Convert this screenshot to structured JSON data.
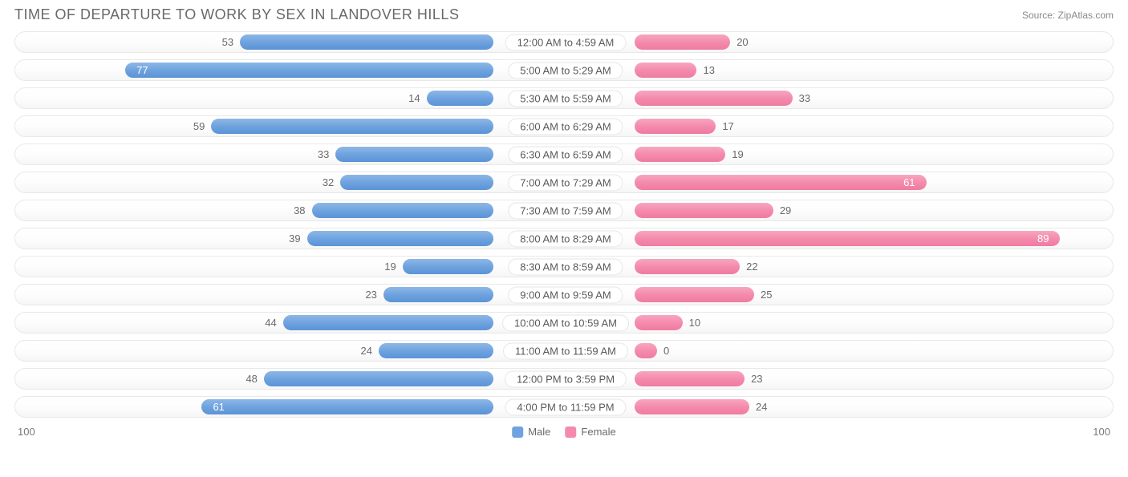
{
  "title": "TIME OF DEPARTURE TO WORK BY SEX IN LANDOVER HILLS",
  "source": "Source: ZipAtlas.com",
  "axis_max": 100,
  "axis_left_label": "100",
  "axis_right_label": "100",
  "colors": {
    "male_fill": "linear-gradient(to bottom, #8db7e6 0%, #6fa3df 50%, #5a93d6 100%)",
    "male_solid": "#6fa3df",
    "female_fill": "linear-gradient(to bottom, #f7a6c0 0%, #f48bad 50%, #ef7ba1 100%)",
    "female_solid": "#f48bad",
    "track_border": "#e8e8e8",
    "text": "#6a6a6a"
  },
  "legend": [
    {
      "label": "Male",
      "color": "#6fa3df"
    },
    {
      "label": "Female",
      "color": "#f48bad"
    }
  ],
  "rows": [
    {
      "label": "12:00 AM to 4:59 AM",
      "male": 53,
      "female": 20,
      "male_inside": false,
      "female_inside": false
    },
    {
      "label": "5:00 AM to 5:29 AM",
      "male": 77,
      "female": 13,
      "male_inside": true,
      "female_inside": false
    },
    {
      "label": "5:30 AM to 5:59 AM",
      "male": 14,
      "female": 33,
      "male_inside": false,
      "female_inside": false
    },
    {
      "label": "6:00 AM to 6:29 AM",
      "male": 59,
      "female": 17,
      "male_inside": false,
      "female_inside": false
    },
    {
      "label": "6:30 AM to 6:59 AM",
      "male": 33,
      "female": 19,
      "male_inside": false,
      "female_inside": false
    },
    {
      "label": "7:00 AM to 7:29 AM",
      "male": 32,
      "female": 61,
      "male_inside": false,
      "female_inside": true
    },
    {
      "label": "7:30 AM to 7:59 AM",
      "male": 38,
      "female": 29,
      "male_inside": false,
      "female_inside": false
    },
    {
      "label": "8:00 AM to 8:29 AM",
      "male": 39,
      "female": 89,
      "male_inside": false,
      "female_inside": true
    },
    {
      "label": "8:30 AM to 8:59 AM",
      "male": 19,
      "female": 22,
      "male_inside": false,
      "female_inside": false
    },
    {
      "label": "9:00 AM to 9:59 AM",
      "male": 23,
      "female": 25,
      "male_inside": false,
      "female_inside": false
    },
    {
      "label": "10:00 AM to 10:59 AM",
      "male": 44,
      "female": 10,
      "male_inside": false,
      "female_inside": false
    },
    {
      "label": "11:00 AM to 11:59 AM",
      "male": 24,
      "female": 0,
      "male_inside": false,
      "female_inside": false
    },
    {
      "label": "12:00 PM to 3:59 PM",
      "male": 48,
      "female": 23,
      "male_inside": false,
      "female_inside": false
    },
    {
      "label": "4:00 PM to 11:59 PM",
      "male": 61,
      "female": 24,
      "male_inside": true,
      "female_inside": false
    }
  ]
}
